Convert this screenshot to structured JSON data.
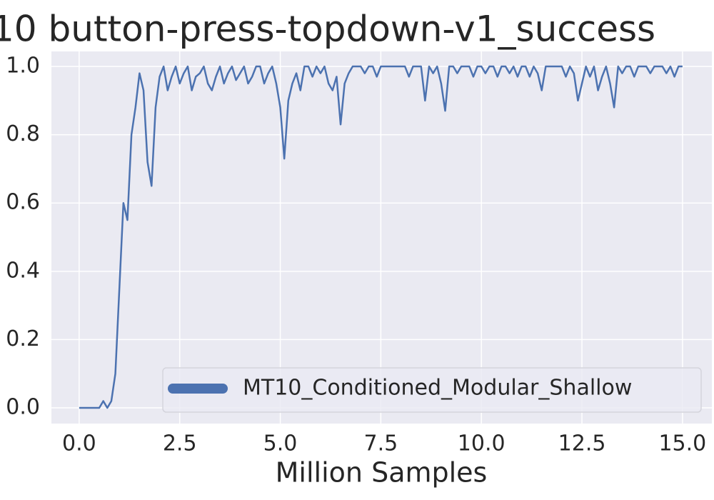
{
  "chart_data": {
    "type": "line",
    "title": "10 button-press-topdown-v1_success",
    "xlabel": "Million Samples",
    "xlim": [
      -0.69,
      15.73
    ],
    "ylim": [
      -0.046,
      1.044
    ],
    "xticks": [
      {
        "value": 0,
        "label": "0.0"
      },
      2.5,
      {
        "value": 5,
        "label": "5.0"
      },
      7.5,
      {
        "value": 10,
        "label": "10.0"
      },
      12.5,
      {
        "value": 15,
        "label": "15.0"
      }
    ],
    "yticks": [
      {
        "value": 0,
        "label": "0.0"
      },
      0.2,
      0.4,
      0.6,
      0.8,
      {
        "value": 1,
        "label": "1.0"
      }
    ],
    "grid": true,
    "legend": "lower right",
    "x": [
      0,
      0.1,
      0.2,
      0.3,
      0.4,
      0.5,
      0.6,
      0.7,
      0.8,
      0.9,
      1,
      1.1,
      1.2,
      1.3,
      1.4,
      1.5,
      1.6,
      1.7,
      1.8,
      1.9,
      2,
      2.1,
      2.2,
      2.3,
      2.4,
      2.5,
      2.6,
      2.7,
      2.8,
      2.9,
      3,
      3.1,
      3.2,
      3.3,
      3.4,
      3.5,
      3.6,
      3.7,
      3.8,
      3.9,
      4,
      4.1,
      4.2,
      4.3,
      4.4,
      4.5,
      4.6,
      4.7,
      4.8,
      4.9,
      5,
      5.1,
      5.2,
      5.3,
      5.4,
      5.5,
      5.6,
      5.7,
      5.8,
      5.9,
      6,
      6.1,
      6.2,
      6.3,
      6.4,
      6.5,
      6.6,
      6.7,
      6.8,
      6.9,
      7,
      7.1,
      7.2,
      7.3,
      7.4,
      7.5,
      7.6,
      7.7,
      7.8,
      7.9,
      8,
      8.1,
      8.2,
      8.3,
      8.4,
      8.5,
      8.6,
      8.7,
      8.8,
      8.9,
      9,
      9.1,
      9.2,
      9.3,
      9.4,
      9.5,
      9.6,
      9.7,
      9.8,
      9.9,
      10,
      10.1,
      10.2,
      10.3,
      10.4,
      10.5,
      10.6,
      10.7,
      10.8,
      10.9,
      11,
      11.1,
      11.2,
      11.3,
      11.4,
      11.5,
      11.6,
      11.7,
      11.8,
      11.9,
      12,
      12.1,
      12.2,
      12.3,
      12.4,
      12.5,
      12.6,
      12.7,
      12.8,
      12.9,
      13,
      13.1,
      13.2,
      13.3,
      13.4,
      13.5,
      13.6,
      13.7,
      13.8,
      13.9,
      14,
      14.1,
      14.2,
      14.3,
      14.4,
      14.5,
      14.6,
      14.7,
      14.8,
      14.9,
      15
    ],
    "series": [
      {
        "name": "MT10_Conditioned_Modular_Shallow",
        "color": "#4c72b0",
        "values": [
          0,
          0,
          0,
          0,
          0,
          0,
          0.02,
          0,
          0.02,
          0.1,
          0.35,
          0.6,
          0.55,
          0.8,
          0.88,
          0.98,
          0.93,
          0.72,
          0.65,
          0.88,
          0.97,
          1.0,
          0.93,
          0.97,
          1.0,
          0.95,
          0.98,
          1.0,
          0.93,
          0.97,
          0.98,
          1.0,
          0.95,
          0.93,
          0.97,
          1.0,
          0.95,
          0.98,
          1.0,
          0.96,
          0.98,
          1.0,
          0.95,
          0.97,
          1.0,
          1.0,
          0.95,
          0.98,
          1.0,
          0.95,
          0.88,
          0.73,
          0.9,
          0.95,
          0.98,
          0.93,
          1.0,
          1.0,
          0.97,
          1.0,
          0.98,
          1.0,
          0.95,
          0.93,
          0.97,
          0.83,
          0.95,
          0.98,
          1.0,
          1.0,
          1.0,
          0.98,
          1.0,
          1.0,
          0.97,
          1.0,
          1.0,
          1.0,
          1.0,
          1.0,
          1.0,
          1.0,
          0.97,
          1.0,
          1.0,
          1.0,
          0.9,
          1.0,
          0.98,
          1.0,
          0.95,
          0.87,
          1.0,
          1.0,
          0.98,
          1.0,
          1.0,
          1.0,
          0.97,
          1.0,
          1.0,
          0.98,
          1.0,
          1.0,
          0.97,
          1.0,
          1.0,
          0.98,
          1.0,
          0.97,
          1.0,
          1.0,
          0.97,
          1.0,
          0.98,
          0.93,
          1.0,
          1.0,
          1.0,
          1.0,
          1.0,
          0.97,
          1.0,
          0.98,
          0.9,
          0.95,
          1.0,
          0.97,
          1.0,
          0.93,
          0.97,
          1.0,
          0.95,
          0.88,
          1.0,
          0.98,
          1.0,
          1.0,
          0.97,
          1.0,
          1.0,
          1.0,
          0.98,
          1.0,
          1.0,
          1.0,
          0.98,
          1.0,
          0.97,
          1.0,
          1.0
        ]
      }
    ]
  }
}
